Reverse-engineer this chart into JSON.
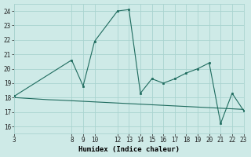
{
  "xlabel": "Humidex (Indice chaleur)",
  "bg_color": "#ceeae7",
  "grid_color": "#aad4d0",
  "line_color": "#1e6b5e",
  "line1_x": [
    3,
    8,
    9,
    10,
    12,
    13,
    14,
    15,
    16,
    17,
    18,
    19,
    20,
    21,
    22,
    23
  ],
  "line1_y": [
    18.1,
    20.6,
    18.8,
    21.9,
    24.0,
    24.1,
    18.3,
    19.3,
    19.0,
    19.3,
    19.7,
    20.0,
    20.4,
    16.2,
    18.3,
    17.1
  ],
  "line2_x": [
    3,
    4,
    5,
    6,
    7,
    8,
    9,
    10,
    11,
    12,
    13,
    14,
    15,
    16,
    17,
    18,
    19,
    20,
    21,
    22,
    23
  ],
  "line2_y": [
    18.0,
    17.95,
    17.9,
    17.85,
    17.82,
    17.78,
    17.74,
    17.7,
    17.66,
    17.62,
    17.58,
    17.54,
    17.5,
    17.46,
    17.42,
    17.38,
    17.34,
    17.3,
    17.26,
    17.22,
    17.18
  ],
  "xlim": [
    3,
    23
  ],
  "ylim": [
    15.5,
    24.5
  ],
  "xticks": [
    3,
    8,
    9,
    10,
    12,
    13,
    14,
    15,
    16,
    17,
    18,
    19,
    20,
    21,
    22,
    23
  ],
  "yticks": [
    16,
    17,
    18,
    19,
    20,
    21,
    22,
    23,
    24
  ],
  "tick_fontsize": 5.5,
  "label_fontsize": 6.5
}
